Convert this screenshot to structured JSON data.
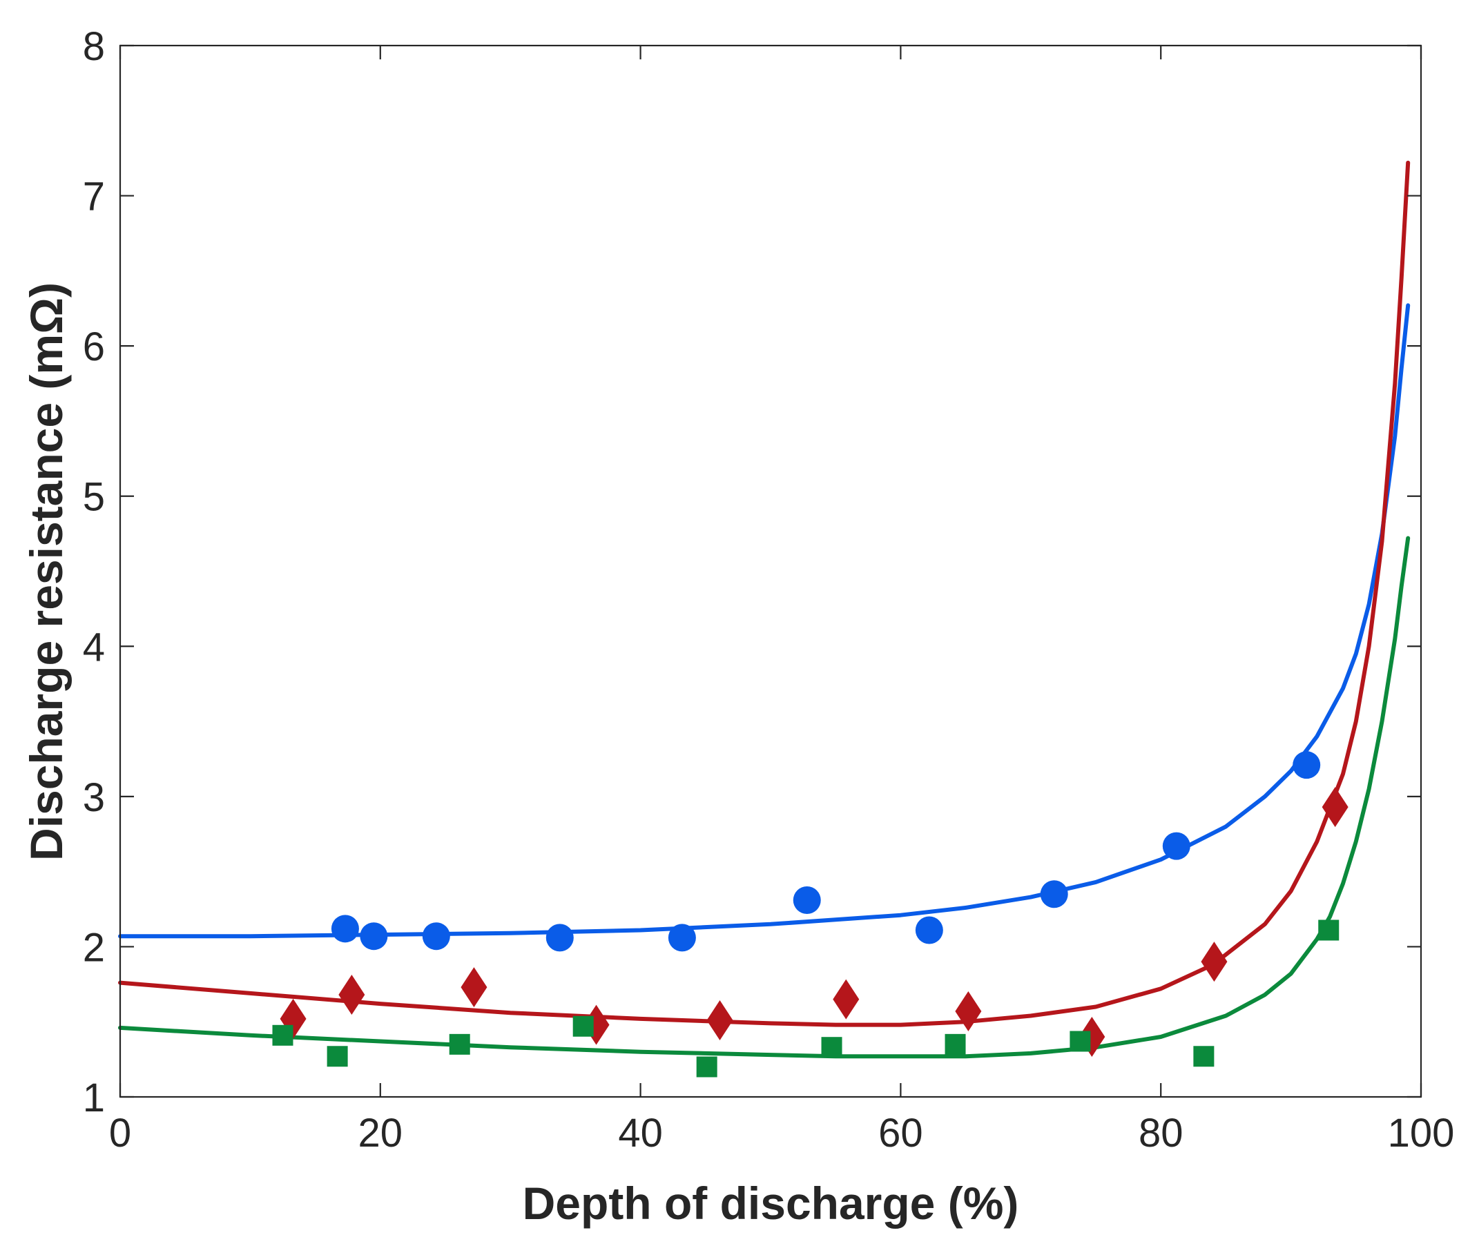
{
  "chart_data": {
    "type": "scatter",
    "title": "",
    "xlabel": "Depth of discharge (%)",
    "ylabel": "Discharge resistance (mΩ)",
    "xlim": [
      0,
      100
    ],
    "ylim": [
      1,
      8
    ],
    "xticks": [
      "0",
      "20",
      "40",
      "60",
      "80",
      "100"
    ],
    "yticks": [
      "1",
      "2",
      "3",
      "4",
      "5",
      "6",
      "7",
      "8"
    ],
    "grid": false,
    "legend": "none",
    "series": [
      {
        "name": "blue-circles",
        "marker": "circle",
        "color": "#0a5ce8",
        "points": [
          [
            17.3,
            2.12
          ],
          [
            19.5,
            2.07
          ],
          [
            24.3,
            2.07
          ],
          [
            33.8,
            2.06
          ],
          [
            43.2,
            2.06
          ],
          [
            52.8,
            2.31
          ],
          [
            62.2,
            2.11
          ],
          [
            71.8,
            2.35
          ],
          [
            81.2,
            2.67
          ],
          [
            91.2,
            3.21
          ]
        ],
        "fit": [
          [
            0,
            2.07
          ],
          [
            10,
            2.07
          ],
          [
            20,
            2.08
          ],
          [
            30,
            2.09
          ],
          [
            40,
            2.11
          ],
          [
            50,
            2.15
          ],
          [
            55,
            2.18
          ],
          [
            60,
            2.21
          ],
          [
            65,
            2.26
          ],
          [
            70,
            2.33
          ],
          [
            75,
            2.43
          ],
          [
            80,
            2.58
          ],
          [
            85,
            2.8
          ],
          [
            88,
            3.0
          ],
          [
            90,
            3.17
          ],
          [
            92,
            3.4
          ],
          [
            94,
            3.72
          ],
          [
            95,
            3.95
          ],
          [
            96,
            4.28
          ],
          [
            97,
            4.75
          ],
          [
            98,
            5.4
          ],
          [
            98.5,
            5.85
          ],
          [
            99,
            6.27
          ]
        ]
      },
      {
        "name": "red-diamonds",
        "marker": "diamond",
        "color": "#b5161b",
        "points": [
          [
            13.3,
            1.52
          ],
          [
            17.8,
            1.68
          ],
          [
            27.2,
            1.73
          ],
          [
            36.6,
            1.48
          ],
          [
            46.1,
            1.51
          ],
          [
            55.8,
            1.65
          ],
          [
            65.2,
            1.57
          ],
          [
            74.7,
            1.4
          ],
          [
            84.1,
            1.9
          ],
          [
            93.4,
            2.93
          ]
        ],
        "fit": [
          [
            0,
            1.76
          ],
          [
            10,
            1.69
          ],
          [
            20,
            1.62
          ],
          [
            30,
            1.56
          ],
          [
            40,
            1.52
          ],
          [
            50,
            1.49
          ],
          [
            55,
            1.48
          ],
          [
            60,
            1.48
          ],
          [
            65,
            1.5
          ],
          [
            70,
            1.54
          ],
          [
            75,
            1.6
          ],
          [
            80,
            1.72
          ],
          [
            84,
            1.88
          ],
          [
            88,
            2.15
          ],
          [
            90,
            2.37
          ],
          [
            92,
            2.7
          ],
          [
            94,
            3.15
          ],
          [
            95,
            3.5
          ],
          [
            96,
            4.0
          ],
          [
            97,
            4.7
          ],
          [
            98,
            5.75
          ],
          [
            98.5,
            6.45
          ],
          [
            99,
            7.22
          ]
        ]
      },
      {
        "name": "green-squares",
        "marker": "square",
        "color": "#0b8a3c",
        "points": [
          [
            12.5,
            1.41
          ],
          [
            16.7,
            1.27
          ],
          [
            26.1,
            1.35
          ],
          [
            35.6,
            1.47
          ],
          [
            45.1,
            1.2
          ],
          [
            54.7,
            1.33
          ],
          [
            64.2,
            1.35
          ],
          [
            73.8,
            1.37
          ],
          [
            83.3,
            1.27
          ],
          [
            92.9,
            2.11
          ]
        ],
        "fit": [
          [
            0,
            1.46
          ],
          [
            10,
            1.41
          ],
          [
            20,
            1.37
          ],
          [
            30,
            1.33
          ],
          [
            40,
            1.3
          ],
          [
            50,
            1.28
          ],
          [
            55,
            1.27
          ],
          [
            60,
            1.27
          ],
          [
            65,
            1.27
          ],
          [
            70,
            1.29
          ],
          [
            75,
            1.33
          ],
          [
            80,
            1.4
          ],
          [
            85,
            1.54
          ],
          [
            88,
            1.68
          ],
          [
            90,
            1.82
          ],
          [
            92,
            2.05
          ],
          [
            93,
            2.2
          ],
          [
            94,
            2.42
          ],
          [
            95,
            2.7
          ],
          [
            96,
            3.05
          ],
          [
            97,
            3.5
          ],
          [
            98,
            4.05
          ],
          [
            98.5,
            4.4
          ],
          [
            99,
            4.72
          ]
        ]
      }
    ]
  }
}
